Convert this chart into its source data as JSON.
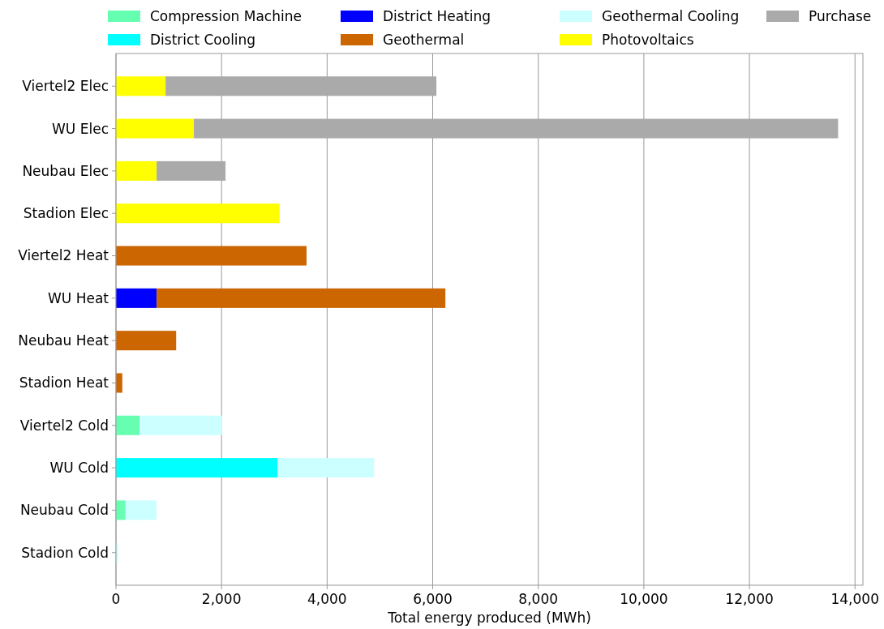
{
  "chart_data": {
    "type": "bar",
    "orientation": "horizontal",
    "stacked": true,
    "xlabel": "Total energy produced (MWh)",
    "categories": [
      "Viertel2 Elec",
      "WU Elec",
      "Neubau Elec",
      "Stadion Elec",
      "Viertel2 Heat",
      "WU Heat",
      "Neubau Heat",
      "Stadion Heat",
      "Viertel2 Cold",
      "WU Cold",
      "Neubau Cold",
      "Stadion Cold"
    ],
    "series": [
      {
        "name": "Compression Machine",
        "color": "#66ffb2",
        "values": [
          null,
          null,
          null,
          null,
          null,
          null,
          null,
          null,
          450,
          null,
          180,
          null
        ]
      },
      {
        "name": "District Cooling",
        "color": "#00ffff",
        "values": [
          null,
          null,
          null,
          null,
          null,
          null,
          null,
          null,
          null,
          3060,
          null,
          null
        ]
      },
      {
        "name": "District Heating",
        "color": "#0000ff",
        "values": [
          null,
          null,
          null,
          null,
          null,
          770,
          null,
          null,
          null,
          null,
          null,
          null
        ]
      },
      {
        "name": "Geothermal",
        "color": "#cc6600",
        "values": [
          null,
          null,
          null,
          null,
          3610,
          5470,
          1140,
          120,
          null,
          null,
          null,
          null
        ]
      },
      {
        "name": "Geothermal Cooling",
        "color": "#ccffff",
        "values": [
          null,
          null,
          null,
          null,
          null,
          null,
          null,
          null,
          1560,
          1830,
          590,
          40
        ]
      },
      {
        "name": "Photovoltaics",
        "color": "#ffff00",
        "values": [
          940,
          1475,
          770,
          3100,
          null,
          null,
          null,
          null,
          null,
          null,
          null,
          null
        ]
      },
      {
        "name": "Purchase",
        "color": "#aaaaaa",
        "values": [
          5130,
          12205,
          1305,
          null,
          null,
          null,
          null,
          null,
          null,
          null,
          null,
          null
        ]
      }
    ],
    "xlim": [
      0,
      14150
    ],
    "xticks": [
      {
        "value": 0,
        "label": "0"
      },
      {
        "value": 2000,
        "label": "2,000"
      },
      {
        "value": 4000,
        "label": "4,000"
      },
      {
        "value": 6000,
        "label": "6,000"
      },
      {
        "value": 8000,
        "label": "8,000"
      },
      {
        "value": 10000,
        "label": "10,000"
      },
      {
        "value": 12000,
        "label": "12,000"
      },
      {
        "value": 14000,
        "label": "14,000"
      }
    ],
    "grid": "x",
    "legend": "top"
  }
}
